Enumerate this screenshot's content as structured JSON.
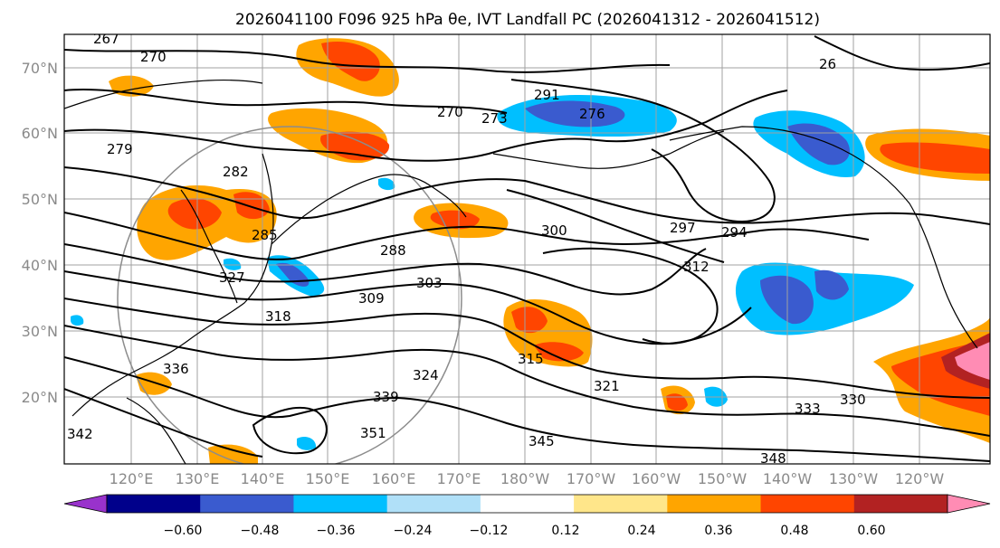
{
  "title": "2026041100 F096 925 hPa θe, IVT Landfall PC (2026041312 - 2026041512)",
  "lat_labels": [
    "70°N",
    "60°N",
    "50°N",
    "40°N",
    "30°N",
    "20°N"
  ],
  "lon_labels": [
    "120°E",
    "130°E",
    "140°E",
    "150°E",
    "160°E",
    "170°E",
    "180°W",
    "170°W",
    "160°W",
    "150°W",
    "140°W",
    "130°W",
    "120°W"
  ],
  "colorbar": {
    "ticks": [
      "−0.60",
      "−0.48",
      "−0.36",
      "−0.24",
      "−0.12",
      "0.12",
      "0.24",
      "0.36",
      "0.48",
      "0.60"
    ],
    "colors": [
      "#9932cc",
      "#00008b",
      "#3a5bcf",
      "#00bfff",
      "#b0e0f8",
      "#ffffff",
      "#ffe68a",
      "#ffa500",
      "#ff4500",
      "#b22222",
      "#ff8cb4"
    ]
  },
  "contour_labels": [
    "267",
    "270",
    "270",
    "273",
    "276",
    "26",
    "279",
    "282",
    "285",
    "288",
    "291",
    "294",
    "297",
    "300",
    "303",
    "309",
    "312",
    "315",
    "318",
    "321",
    "324",
    "327",
    "330",
    "333",
    "336",
    "339",
    "342",
    "345",
    "348",
    "351"
  ],
  "colors": {
    "positive": "#ffa500",
    "strong_positive": "#ff4500",
    "negative": "#00bfff",
    "strong_negative": "#3a5bcf"
  }
}
